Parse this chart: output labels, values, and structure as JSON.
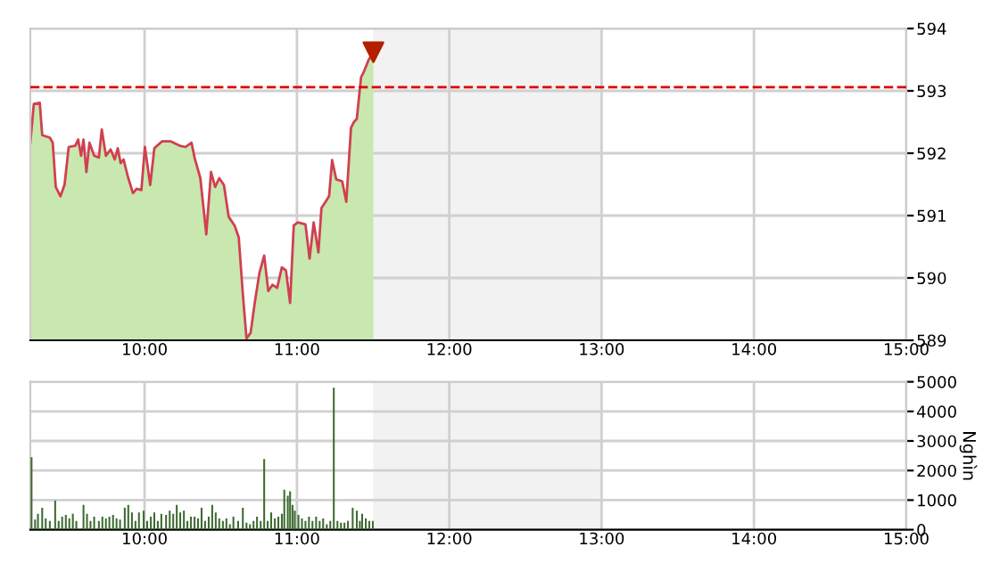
{
  "chart_data": [
    {
      "type": "area",
      "xlim": [
        9.25,
        15
      ],
      "ylim": [
        589,
        594
      ],
      "xticks": [
        {
          "value": 10,
          "label": "10:00"
        },
        {
          "value": 11,
          "label": "11:00"
        },
        {
          "value": 12,
          "label": "12:00"
        },
        {
          "value": 13,
          "label": "13:00"
        },
        {
          "value": 14,
          "label": "14:00"
        },
        {
          "value": 15,
          "label": "15:00"
        }
      ],
      "yticks": [
        589,
        590,
        591,
        592,
        593,
        594
      ],
      "grid": true,
      "ref_lines": [
        {
          "axis": "y",
          "value": 593.06,
          "color": "#dd0000",
          "line_style": "dashed"
        }
      ],
      "bands": [
        {
          "axis": "x",
          "from": 11.5,
          "to": 13,
          "color": "#f2f2f2"
        }
      ],
      "series": [
        {
          "color": "#c8e8b0",
          "x": [
            9.25,
            9.273,
            9.312,
            9.328,
            9.378,
            9.397,
            9.417,
            9.448,
            9.475,
            9.502,
            9.545,
            9.564,
            9.583,
            9.599,
            9.618,
            9.638,
            9.669,
            9.7,
            9.719,
            9.746,
            9.777,
            9.804,
            9.824,
            9.843,
            9.862,
            9.893,
            9.924,
            9.948,
            9.979,
            10.002,
            10.037,
            10.064,
            10.114,
            10.172,
            10.231,
            10.269,
            10.308,
            10.328,
            10.366,
            10.405,
            10.436,
            10.463,
            10.49,
            10.521,
            10.552,
            10.591,
            10.618,
            10.645,
            10.669,
            10.696,
            10.723,
            10.754,
            10.785,
            10.812,
            10.839,
            10.87,
            10.901,
            10.928,
            10.955,
            10.979,
            11.006,
            11.056,
            11.083,
            11.11,
            11.141,
            11.161,
            11.188,
            11.211,
            11.231,
            11.258,
            11.297,
            11.324,
            11.355,
            11.374,
            11.393,
            11.421,
            11.44,
            11.471,
            11.502
          ],
          "values": [
            592.17,
            592.79,
            592.81,
            592.29,
            592.25,
            592.17,
            591.46,
            591.31,
            591.5,
            592.1,
            592.12,
            592.22,
            591.96,
            592.22,
            591.7,
            592.17,
            591.96,
            591.93,
            592.38,
            591.96,
            592.06,
            591.9,
            592.08,
            591.84,
            591.9,
            591.6,
            591.36,
            591.43,
            591.41,
            592.1,
            591.49,
            592.08,
            592.19,
            592.19,
            592.12,
            592.1,
            592.17,
            591.93,
            591.6,
            590.7,
            591.7,
            591.46,
            591.6,
            591.49,
            590.98,
            590.84,
            590.65,
            589.74,
            589.03,
            589.12,
            589.6,
            590.08,
            590.36,
            589.79,
            589.89,
            589.84,
            590.17,
            590.12,
            589.6,
            590.84,
            590.89,
            590.86,
            590.31,
            590.89,
            590.41,
            591.12,
            591.22,
            591.31,
            591.89,
            591.58,
            591.55,
            591.22,
            592.41,
            592.5,
            592.55,
            593.22,
            593.31,
            593.5,
            593.62
          ]
        },
        {
          "type": "line",
          "color": "#d04050",
          "x": [
            9.25,
            9.273,
            9.312,
            9.328,
            9.378,
            9.397,
            9.417,
            9.448,
            9.475,
            9.502,
            9.545,
            9.564,
            9.583,
            9.599,
            9.618,
            9.638,
            9.669,
            9.7,
            9.719,
            9.746,
            9.777,
            9.804,
            9.824,
            9.843,
            9.862,
            9.893,
            9.924,
            9.948,
            9.979,
            10.002,
            10.037,
            10.064,
            10.114,
            10.172,
            10.231,
            10.269,
            10.308,
            10.328,
            10.366,
            10.405,
            10.436,
            10.463,
            10.49,
            10.521,
            10.552,
            10.591,
            10.618,
            10.645,
            10.669,
            10.696,
            10.723,
            10.754,
            10.785,
            10.812,
            10.839,
            10.87,
            10.901,
            10.928,
            10.955,
            10.979,
            11.006,
            11.056,
            11.083,
            11.11,
            11.141,
            11.161,
            11.188,
            11.211,
            11.231,
            11.258,
            11.297,
            11.324,
            11.355,
            11.374,
            11.393,
            11.421,
            11.44,
            11.471,
            11.502
          ],
          "values": [
            592.17,
            592.79,
            592.81,
            592.29,
            592.25,
            592.17,
            591.46,
            591.31,
            591.5,
            592.1,
            592.12,
            592.22,
            591.96,
            592.22,
            591.7,
            592.17,
            591.96,
            591.93,
            592.38,
            591.96,
            592.06,
            591.9,
            592.08,
            591.84,
            591.9,
            591.6,
            591.36,
            591.43,
            591.41,
            592.1,
            591.49,
            592.08,
            592.19,
            592.19,
            592.12,
            592.1,
            592.17,
            591.93,
            591.6,
            590.7,
            591.7,
            591.46,
            591.6,
            591.49,
            590.98,
            590.84,
            590.65,
            589.74,
            589.03,
            589.12,
            589.6,
            590.08,
            590.36,
            589.79,
            589.89,
            589.84,
            590.17,
            590.12,
            589.6,
            590.84,
            590.89,
            590.86,
            590.31,
            590.89,
            590.41,
            591.12,
            591.22,
            591.31,
            591.89,
            591.58,
            591.55,
            591.22,
            592.41,
            592.5,
            592.55,
            593.22,
            593.31,
            593.5,
            593.62
          ]
        }
      ]
    },
    {
      "type": "bar",
      "xlim": [
        9.25,
        15
      ],
      "ylim": [
        0,
        5000
      ],
      "ylabel": "Nghìn",
      "xticks": [
        {
          "value": 10,
          "label": "10:00"
        },
        {
          "value": 11,
          "label": "11:00"
        },
        {
          "value": 12,
          "label": "12:00"
        },
        {
          "value": 13,
          "label": "13:00"
        },
        {
          "value": 14,
          "label": "14:00"
        },
        {
          "value": 15,
          "label": "15:00"
        }
      ],
      "yticks": [
        0,
        1000,
        2000,
        3000,
        4000,
        5000
      ],
      "grid": true,
      "bands": [
        {
          "axis": "x",
          "from": 11.5,
          "to": 13,
          "color": "#f2f2f2"
        }
      ],
      "series": [
        {
          "color": "#3d6b30",
          "x": [
            9.258,
            9.281,
            9.3,
            9.328,
            9.351,
            9.378,
            9.413,
            9.436,
            9.459,
            9.483,
            9.506,
            9.529,
            9.552,
            9.599,
            9.622,
            9.645,
            9.669,
            9.7,
            9.723,
            9.746,
            9.769,
            9.793,
            9.816,
            9.839,
            9.87,
            9.893,
            9.917,
            9.94,
            9.963,
            9.994,
            10.017,
            10.041,
            10.064,
            10.087,
            10.11,
            10.141,
            10.165,
            10.188,
            10.211,
            10.234,
            10.258,
            10.281,
            10.304,
            10.328,
            10.351,
            10.374,
            10.397,
            10.421,
            10.444,
            10.467,
            10.49,
            10.514,
            10.537,
            10.56,
            10.583,
            10.614,
            10.645,
            10.669,
            10.692,
            10.715,
            10.738,
            10.762,
            10.785,
            10.808,
            10.831,
            10.855,
            10.878,
            10.901,
            10.917,
            10.94,
            10.955,
            10.971,
            10.986,
            11.01,
            11.033,
            11.056,
            11.079,
            11.102,
            11.126,
            11.149,
            11.172,
            11.196,
            11.219,
            11.242,
            11.266,
            11.289,
            11.312,
            11.335,
            11.366,
            11.393,
            11.413,
            11.428,
            11.452,
            11.475,
            11.498
          ],
          "values": [
            2450,
            340,
            540,
            740,
            380,
            300,
            980,
            300,
            440,
            500,
            380,
            540,
            300,
            840,
            540,
            300,
            440,
            300,
            440,
            380,
            440,
            500,
            380,
            340,
            740,
            840,
            580,
            300,
            580,
            640,
            300,
            440,
            580,
            300,
            540,
            500,
            640,
            540,
            840,
            580,
            640,
            300,
            440,
            440,
            380,
            740,
            300,
            440,
            840,
            580,
            380,
            300,
            380,
            180,
            440,
            300,
            740,
            240,
            180,
            300,
            440,
            300,
            2390,
            300,
            580,
            380,
            440,
            540,
            1350,
            1150,
            1300,
            840,
            640,
            500,
            380,
            300,
            440,
            300,
            440,
            300,
            380,
            180,
            300,
            4800,
            300,
            240,
            240,
            300,
            740,
            640,
            300,
            540,
            380,
            300,
            300
          ]
        }
      ]
    }
  ]
}
